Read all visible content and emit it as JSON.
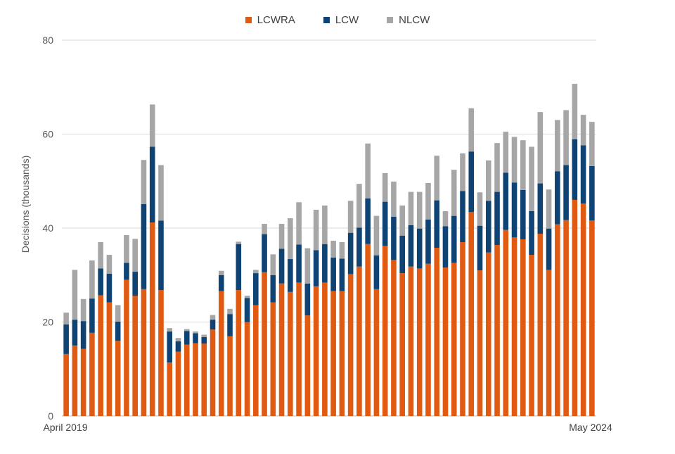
{
  "chart_data": {
    "type": "bar",
    "stacked": true,
    "title": "",
    "xlabel": "",
    "ylabel": "Decisions (thousands)",
    "ylim": [
      0,
      80
    ],
    "yticks": [
      0,
      20,
      40,
      60,
      80
    ],
    "grid": true,
    "legend_position": "top-center",
    "x_start_label": "April 2019",
    "x_end_label": "May 2024",
    "categories_count": 62,
    "colors": {
      "LCWRA": "#e05a12",
      "LCW": "#0f4374",
      "NLCW": "#a6a6a6"
    },
    "series": [
      {
        "name": "LCWRA",
        "values": [
          13.2,
          15,
          14.3,
          17.7,
          25.7,
          24.2,
          16,
          29,
          25.6,
          27,
          41.2,
          26.8,
          11.4,
          13.7,
          15.2,
          15.5,
          15.4,
          18.4,
          26.6,
          17,
          26.8,
          20,
          23.6,
          30.6,
          24.2,
          28.2,
          26.4,
          28.4,
          21.4,
          27.6,
          28.4,
          26.6,
          26.6,
          30.2,
          31.8,
          36.6,
          27,
          36.2,
          33.2,
          30.4,
          31.8,
          31.4,
          32.4,
          35.8,
          31.6,
          32.6,
          37,
          43.4,
          31,
          34.8,
          36.4,
          39.6,
          38,
          37.6,
          34.3,
          38.8,
          31.1,
          40.8,
          41.7,
          46,
          45.2,
          41.6
        ]
      },
      {
        "name": "LCW",
        "values": [
          6.3,
          5.5,
          5.9,
          7.3,
          5.7,
          6.1,
          4.1,
          3.6,
          5.1,
          18.1,
          16.1,
          14.8,
          6.6,
          2.2,
          2.9,
          2.1,
          1.4,
          2.1,
          3.4,
          4.7,
          9.8,
          5.1,
          6.8,
          8.1,
          5.8,
          7.4,
          7,
          8.1,
          6.8,
          7.7,
          8.2,
          7.1,
          6.9,
          8.8,
          8.3,
          9.7,
          7.2,
          9.4,
          9.2,
          8,
          8.8,
          8.5,
          9.4,
          10.1,
          8.8,
          10,
          10.9,
          12.9,
          9.5,
          11,
          11.3,
          12.2,
          11.7,
          10.5,
          9.3,
          10.7,
          8.8,
          11.3,
          11.7,
          12.9,
          12.4,
          11.6
        ]
      },
      {
        "name": "NLCW",
        "values": [
          2.5,
          10.6,
          4.7,
          8.1,
          5.6,
          4,
          3.5,
          5.9,
          7,
          9.4,
          9,
          11.8,
          0.7,
          0.7,
          0.4,
          0.4,
          0.5,
          1,
          0.9,
          1.1,
          0.5,
          0.5,
          0.7,
          2.2,
          4.4,
          5.3,
          8.7,
          9,
          7.5,
          8.6,
          8.2,
          3.6,
          3.5,
          6.8,
          9.3,
          11.7,
          8.4,
          6.1,
          7.5,
          6.4,
          7.1,
          7.8,
          7.8,
          9.5,
          3.2,
          9.8,
          8,
          9.2,
          7.1,
          8.6,
          10.4,
          8.7,
          9.7,
          10.6,
          13.7,
          15.2,
          8.3,
          10.9,
          11.7,
          11.8,
          6.5,
          9.4
        ]
      }
    ]
  }
}
